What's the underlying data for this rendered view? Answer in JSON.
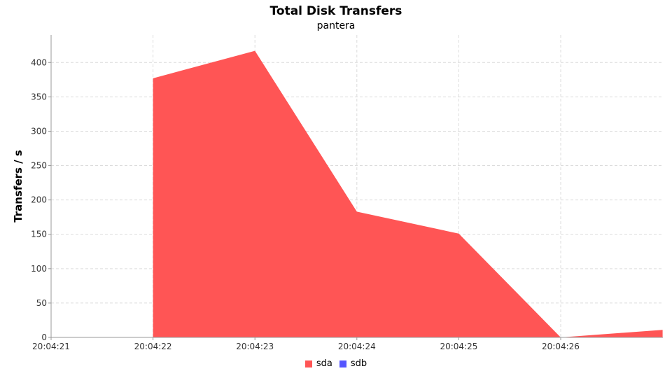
{
  "chart_data": {
    "type": "area",
    "title": "Total Disk Transfers",
    "subtitle": "pantera",
    "xlabel": "",
    "ylabel": "Transfers / s",
    "x": [
      "20:04:21",
      "20:04:22",
      "20:04:23",
      "20:04:24",
      "20:04:25",
      "20:04:26",
      "20:04:27"
    ],
    "x_tick_labels": [
      "20:04:21",
      "20:04:22",
      "20:04:23",
      "20:04:24",
      "20:04:25",
      "20:04:26"
    ],
    "ylim": [
      0,
      440
    ],
    "yticks": [
      0,
      50,
      100,
      150,
      200,
      250,
      300,
      350,
      400
    ],
    "grid": true,
    "legend_position": "bottom",
    "series": [
      {
        "name": "sda",
        "color": "#ff5555",
        "values": [
          null,
          377,
          417,
          183,
          151,
          0,
          11
        ]
      },
      {
        "name": "sdb",
        "color": "#5555ff",
        "values": [
          null,
          0,
          0,
          0,
          0,
          0,
          0
        ]
      }
    ]
  }
}
